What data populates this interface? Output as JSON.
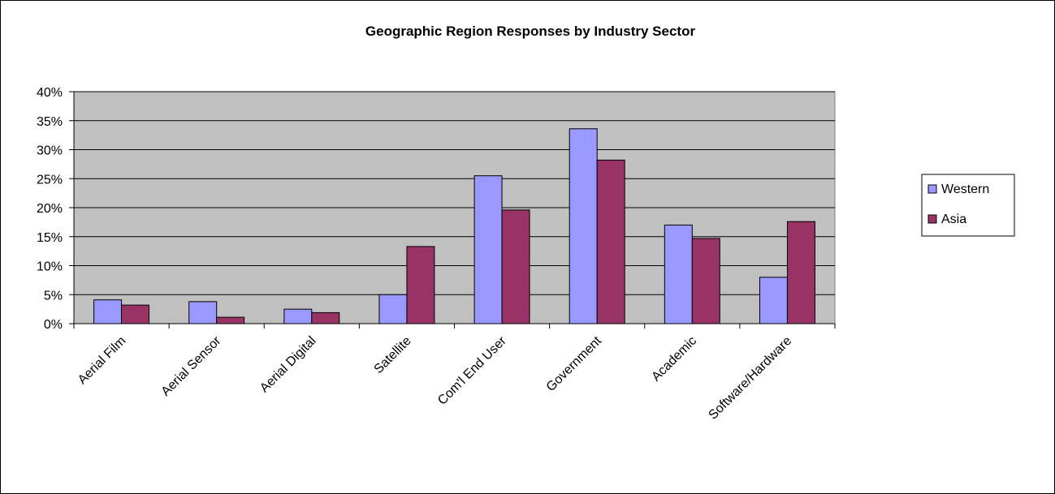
{
  "chart_data": {
    "type": "bar",
    "title": "Geographic Region Responses by Industry Sector",
    "xlabel": "",
    "ylabel": "",
    "categories": [
      "Aerial Film",
      "Aerial Sensor",
      "Aerial Digital",
      "Satellite",
      "Com'l End User",
      "Government",
      "Academic",
      "Software/Hardware"
    ],
    "series": [
      {
        "name": "Western",
        "color": "#9999ff",
        "values": [
          4.1,
          3.8,
          2.5,
          5.0,
          25.5,
          33.6,
          17.0,
          8.0
        ]
      },
      {
        "name": "Asia",
        "color": "#993366",
        "values": [
          3.2,
          1.1,
          1.9,
          13.3,
          19.6,
          28.2,
          14.7,
          17.6
        ]
      }
    ],
    "ylim": [
      0,
      40
    ],
    "yticks": [
      "0%",
      "5%",
      "10%",
      "15%",
      "20%",
      "25%",
      "30%",
      "35%",
      "40%"
    ],
    "grid": true,
    "plot_background": "#c0c0c0",
    "legend_position": "right"
  }
}
